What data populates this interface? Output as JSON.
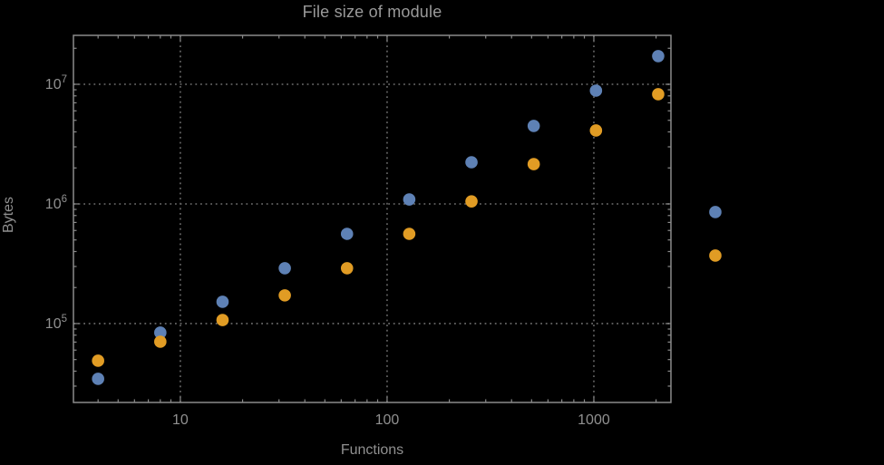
{
  "chart_data": {
    "type": "scatter",
    "title": "File size of module",
    "xlabel": "Functions",
    "ylabel": "Bytes",
    "x_scale": "log",
    "y_scale": "log",
    "xlim": [
      3.04,
      2360
    ],
    "ylim": [
      21900,
      25650000
    ],
    "grid": "dotted gridlines at decade ticks, frame on all four sides with inward mirrored ticks",
    "legend": "none",
    "background_color": "#000000",
    "frame_color": "#8a8a8a",
    "grid_color": "#5f5f5f",
    "text_color": "#909090",
    "x_ticks": [
      {
        "value": 10,
        "label": "10"
      },
      {
        "value": 100,
        "label": "100"
      },
      {
        "value": 1000,
        "label": "1000"
      }
    ],
    "y_ticks": [
      {
        "value": 100000,
        "mantissa": "10",
        "exponent": "5"
      },
      {
        "value": 1000000,
        "mantissa": "10",
        "exponent": "6"
      },
      {
        "value": 10000000,
        "mantissa": "10",
        "exponent": "7"
      }
    ],
    "x_minor_ticks": [
      4,
      5,
      6,
      7,
      8,
      9,
      20,
      30,
      40,
      50,
      60,
      70,
      80,
      90,
      200,
      300,
      400,
      500,
      600,
      700,
      800,
      900,
      2000
    ],
    "y_minor_ticks": [
      30000,
      40000,
      50000,
      60000,
      70000,
      80000,
      90000,
      200000,
      300000,
      400000,
      500000,
      600000,
      700000,
      800000,
      900000,
      2000000,
      3000000,
      4000000,
      5000000,
      6000000,
      7000000,
      8000000,
      9000000,
      20000000
    ],
    "marker": {
      "shape": "circle",
      "radius_px": 6.8
    },
    "series": [
      {
        "name": "blue",
        "color": "#5e81b5",
        "x": [
          4,
          8,
          16,
          32,
          64,
          128,
          256,
          512,
          1024,
          2048,
          3870
        ],
        "y": [
          34500,
          84000,
          152000,
          290000,
          562000,
          1090000,
          2230000,
          4490000,
          8850000,
          17200000,
          855000
        ]
      },
      {
        "name": "orange",
        "color": "#e19c24",
        "x": [
          4,
          8,
          16,
          32,
          64,
          128,
          256,
          512,
          1024,
          2048,
          3870
        ],
        "y": [
          48900,
          70500,
          107000,
          172000,
          290000,
          562000,
          1050000,
          2150000,
          4110000,
          8260000,
          370000
        ]
      }
    ],
    "annotations": "last pair of points (x≈3870) is rendered outside the right edge of the plot frame"
  }
}
